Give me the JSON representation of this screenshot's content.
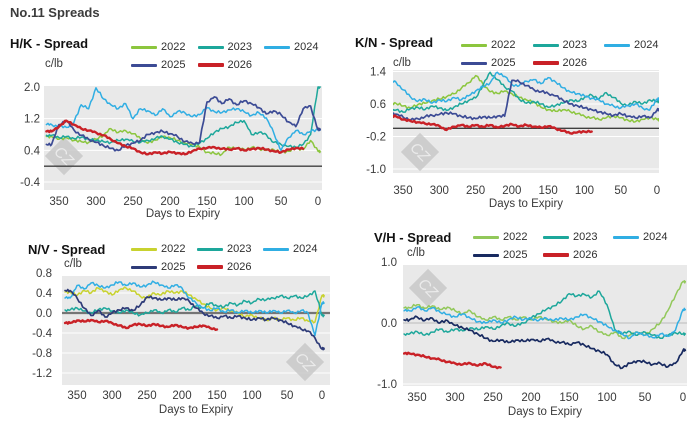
{
  "page_title": "No.11 Spreads",
  "watermark_text": "CZ",
  "legend_years": [
    "2022",
    "2023",
    "2024",
    "2025",
    "2026"
  ],
  "chart_data": [
    {
      "type": "line",
      "title": "H/K - Spread",
      "ylabel": "c/lb",
      "xlabel": "Days to Expiry",
      "ylim": [
        -0.6,
        2.02
      ],
      "yticks": [
        "2.0",
        "1.2",
        "0.4",
        "-0.4"
      ],
      "xticks": [
        "350",
        "300",
        "250",
        "200",
        "150",
        "100",
        "50",
        "0"
      ],
      "zero_line": 0.0,
      "grid": true,
      "legend_position": "top",
      "x_start": 360,
      "x_step": -10,
      "series": [
        {
          "name": "2022",
          "color": "#8cc63e",
          "values": [
            0.75,
            0.68,
            0.72,
            0.65,
            0.62,
            0.6,
            0.68,
            0.78,
            0.95,
            0.85,
            0.9,
            0.82,
            0.7,
            0.58,
            0.66,
            0.75,
            0.72,
            0.65,
            0.58,
            0.55,
            0.48,
            0.35,
            0.32,
            0.3,
            0.48,
            0.45,
            0.43,
            0.47,
            0.44,
            0.4,
            0.42,
            0.35,
            0.38,
            0.45,
            0.42,
            0.65,
            0.38
          ]
        },
        {
          "name": "2023",
          "color": "#1da79b",
          "values": [
            0.78,
            0.72,
            0.75,
            0.7,
            0.73,
            0.68,
            0.65,
            0.62,
            0.6,
            0.65,
            0.68,
            0.63,
            0.6,
            0.65,
            0.7,
            0.75,
            0.68,
            0.6,
            0.55,
            0.5,
            0.58,
            0.7,
            0.85,
            0.95,
            1.0,
            1.1,
            1.15,
            0.8,
            0.85,
            0.8,
            0.6,
            0.55,
            0.5,
            0.48,
            0.55,
            0.8,
            2.0
          ]
        },
        {
          "name": "2024",
          "color": "#30aee3",
          "values": [
            1.05,
            1.0,
            0.98,
            1.1,
            1.55,
            1.45,
            1.98,
            1.7,
            1.55,
            1.45,
            1.58,
            1.2,
            1.45,
            1.4,
            1.28,
            1.45,
            1.25,
            1.38,
            1.35,
            1.25,
            1.3,
            1.48,
            1.38,
            1.35,
            1.42,
            1.45,
            1.38,
            1.28,
            1.35,
            1.22,
            0.85,
            0.4,
            0.72,
            0.9,
            0.8,
            0.88,
            0.92
          ]
        },
        {
          "name": "2025",
          "color": "#3c4b95",
          "values": [
            0.55,
            1.05,
            1.15,
            0.92,
            0.78,
            0.68,
            0.6,
            0.52,
            0.45,
            0.4,
            0.52,
            0.58,
            0.65,
            0.8,
            0.85,
            0.88,
            0.82,
            0.75,
            0.62,
            0.58,
            0.6,
            1.62,
            1.75,
            1.58,
            1.7,
            1.55,
            1.65,
            1.58,
            1.48,
            1.32,
            1.4,
            1.3,
            1.12,
            1.0,
            1.45,
            1.52,
            0.92
          ]
        },
        {
          "name": "2026",
          "color": "#c92127",
          "values": [
            0.88,
            1.0,
            1.15,
            1.05,
            0.95,
            0.9,
            0.85,
            0.78,
            0.68,
            0.58,
            0.5,
            0.45,
            0.35,
            0.3,
            0.35,
            0.32,
            0.36,
            0.33,
            0.3,
            0.38,
            0.44,
            0.46,
            0.48,
            0.44,
            0.42,
            0.45,
            0.4,
            0.43,
            0.46,
            0.42,
            0.38,
            0.35,
            0.42,
            0.46,
            0.44
          ]
        }
      ]
    },
    {
      "type": "line",
      "title": "K/N - Spread",
      "ylabel": "c/lb",
      "xlabel": "Days to Expiry",
      "ylim": [
        -1.11,
        1.42
      ],
      "yticks": [
        "1.4",
        "0.6",
        "-0.2",
        "-1.0"
      ],
      "xticks": [
        "350",
        "300",
        "250",
        "200",
        "150",
        "100",
        "50",
        "0"
      ],
      "zero_line": 0.0,
      "grid": true,
      "legend_position": "top",
      "x_start": 360,
      "x_step": -10,
      "series": [
        {
          "name": "2022",
          "color": "#8cc63e",
          "values": [
            0.62,
            0.55,
            0.5,
            0.58,
            0.62,
            0.68,
            0.72,
            0.78,
            0.85,
            0.98,
            1.12,
            1.3,
            1.1,
            0.9,
            0.86,
            0.92,
            0.85,
            0.76,
            0.7,
            0.64,
            0.52,
            0.46,
            0.42,
            0.46,
            0.42,
            0.36,
            0.3,
            0.26,
            0.22,
            0.26,
            0.3,
            0.26,
            0.2,
            0.16,
            0.22,
            0.26,
            0.22
          ]
        },
        {
          "name": "2023",
          "color": "#1da79b",
          "values": [
            0.45,
            0.4,
            0.48,
            0.52,
            0.46,
            0.55,
            0.5,
            0.44,
            0.52,
            0.6,
            0.68,
            0.75,
            1.05,
            1.38,
            1.2,
            1.02,
            0.92,
            0.72,
            0.62,
            0.66,
            0.6,
            0.52,
            0.56,
            0.62,
            0.7,
            0.66,
            0.76,
            0.82,
            0.72,
            0.88,
            0.76,
            0.62,
            0.56,
            0.66,
            0.6,
            0.7,
            0.66
          ]
        },
        {
          "name": "2024",
          "color": "#30aee3",
          "values": [
            1.15,
            0.95,
            0.78,
            0.66,
            0.72,
            0.62,
            0.7,
            0.66,
            0.76,
            0.7,
            0.8,
            0.92,
            1.02,
            1.12,
            1.38,
            1.28,
            1.08,
            1.05,
            1.16,
            1.2,
            1.1,
            1.25,
            1.15,
            1.0,
            0.9,
            0.85,
            0.8,
            0.74,
            0.7,
            0.6,
            0.55,
            0.5,
            0.56,
            0.6,
            0.5,
            0.45,
            0.72
          ]
        },
        {
          "name": "2025",
          "color": "#3c4b95",
          "values": [
            0.35,
            0.28,
            0.2,
            0.24,
            0.28,
            0.32,
            0.34,
            0.38,
            0.36,
            0.3,
            0.26,
            0.24,
            0.28,
            0.26,
            0.3,
            0.3,
            1.18,
            1.15,
            1.05,
            0.96,
            0.9,
            0.86,
            0.8,
            0.7,
            0.6,
            0.56,
            0.5,
            0.46,
            0.4,
            0.36,
            0.32,
            0.36,
            0.3,
            0.26,
            0.3,
            0.26,
            0.45
          ]
        },
        {
          "name": "2026",
          "color": "#c92127",
          "values": [
            0.3,
            0.22,
            0.18,
            0.15,
            0.12,
            0.1,
            0.06,
            -0.04,
            0.04,
            0.08,
            0.04,
            0.08,
            0.04,
            0.08,
            0.02,
            0.06,
            0.1,
            0.05,
            0.08,
            0.04,
            0.02,
            0.05,
            0.0,
            -0.06,
            -0.12,
            -0.1,
            -0.08,
            -0.08
          ]
        }
      ]
    },
    {
      "type": "line",
      "title": "N/V - Spread",
      "ylabel": "c/lb",
      "xlabel": "Days to Expiry",
      "ylim": [
        -1.39,
        0.77
      ],
      "yticks": [
        "0.8",
        "0.4",
        "0.0",
        "-0.4",
        "-0.8",
        "-1.2"
      ],
      "xticks": [
        "350",
        "300",
        "250",
        "200",
        "150",
        "100",
        "50",
        "0"
      ],
      "zero_line": 0.0,
      "grid": true,
      "legend_position": "top",
      "x_start": 360,
      "x_step": -10,
      "series": [
        {
          "name": "2022",
          "color": "#c8d22f",
          "values": [
            0.42,
            0.35,
            0.45,
            0.4,
            0.5,
            0.44,
            0.36,
            0.46,
            0.5,
            0.44,
            0.34,
            0.3,
            0.4,
            0.36,
            0.44,
            0.4,
            0.44,
            0.36,
            0.28,
            0.18,
            0.1,
            0.06,
            0.1,
            0.04,
            0.0,
            -0.08,
            -0.04,
            -0.1,
            -0.14,
            -0.1,
            -0.14,
            -0.1,
            -0.14,
            -0.1,
            -0.16,
            -0.18,
            0.35
          ]
        },
        {
          "name": "2023",
          "color": "#1da79b",
          "values": [
            0.06,
            0.1,
            0.04,
            0.0,
            0.06,
            0.1,
            0.04,
            0.0,
            0.06,
            0.0,
            -0.04,
            0.0,
            0.06,
            0.0,
            0.06,
            0.02,
            0.1,
            0.06,
            0.14,
            0.1,
            0.2,
            0.14,
            0.12,
            0.2,
            0.16,
            0.24,
            0.2,
            0.28,
            0.26,
            0.3,
            0.34,
            0.3,
            0.34,
            0.3,
            0.34,
            0.44,
            -0.05
          ]
        },
        {
          "name": "2024",
          "color": "#30aee3",
          "values": [
            0.3,
            0.55,
            0.48,
            0.6,
            0.55,
            0.5,
            0.56,
            0.62,
            0.55,
            0.6,
            0.52,
            0.56,
            0.62,
            0.56,
            0.5,
            0.56,
            0.5,
            0.3,
            0.2,
            0.1,
            0.05,
            0.1,
            0.02,
            0.06,
            0.0,
            0.05,
            0.0,
            0.05,
            0.0,
            0.05,
            0.0,
            0.05,
            0.0,
            0.05,
            0.0,
            -0.45,
            0.2
          ]
        },
        {
          "name": "2025",
          "color": "#2e3b78",
          "values": [
            0.45,
            0.3,
            0.1,
            -0.05,
            0.05,
            -0.08,
            0.0,
            0.06,
            0.1,
            0.05,
            0.15,
            0.32,
            0.3,
            0.26,
            0.3,
            0.26,
            0.3,
            0.24,
            0.1,
            0.0,
            -0.06,
            -0.1,
            -0.06,
            -0.1,
            -0.06,
            -0.1,
            -0.14,
            -0.1,
            -0.14,
            -0.1,
            -0.14,
            -0.2,
            -0.26,
            -0.32,
            -0.36,
            -0.5,
            -0.72
          ]
        },
        {
          "name": "2026",
          "color": "#c92127",
          "values": [
            -0.2,
            -0.15,
            -0.17,
            -0.14,
            -0.18,
            -0.16,
            -0.2,
            -0.25,
            -0.3,
            -0.24,
            -0.22,
            -0.26,
            -0.22,
            -0.26,
            -0.28,
            -0.24,
            -0.28,
            -0.3,
            -0.28,
            -0.25,
            -0.3,
            -0.33
          ]
        }
      ]
    },
    {
      "type": "line",
      "title": "V/H - Spread",
      "ylabel": "c/lb",
      "xlabel": "Days to Expiry",
      "ylim": [
        -1.03,
        0.95
      ],
      "yticks": [
        "1.0",
        "0.0",
        "-1.0"
      ],
      "xticks": [
        "350",
        "300",
        "250",
        "200",
        "150",
        "100",
        "50",
        "0"
      ],
      "zero_line": 0.0,
      "grid": true,
      "legend_position": "top",
      "x_start": 360,
      "x_step": -10,
      "series": [
        {
          "name": "2022",
          "color": "#92c85a",
          "values": [
            0.25,
            0.3,
            0.24,
            0.28,
            0.22,
            0.26,
            0.2,
            0.15,
            0.2,
            0.1,
            0.05,
            0.1,
            0.05,
            0.1,
            0.05,
            0.1,
            0.05,
            0.1,
            0.06,
            0.02,
            0.0,
            0.05,
            -0.05,
            -0.1,
            -0.05,
            -0.15,
            -0.2,
            -0.15,
            -0.25,
            -0.2,
            -0.15,
            -0.2,
            -0.1,
            0.0,
            0.2,
            0.45,
            0.68
          ]
        },
        {
          "name": "2023",
          "color": "#1da79b",
          "values": [
            -0.18,
            -0.14,
            -0.2,
            -0.15,
            -0.1,
            -0.15,
            -0.1,
            -0.13,
            -0.08,
            -0.11,
            -0.06,
            -0.1,
            -0.05,
            0.0,
            -0.05,
            0.0,
            0.08,
            0.15,
            0.22,
            0.28,
            0.35,
            0.48,
            0.44,
            0.47,
            0.42,
            0.52,
            0.3,
            -0.1,
            -0.18,
            -0.14,
            -0.2,
            -0.15,
            -0.2,
            -0.25,
            -0.2,
            -0.16,
            -0.18
          ]
        },
        {
          "name": "2024",
          "color": "#30aee3",
          "values": [
            0.2,
            0.26,
            0.2,
            0.25,
            0.18,
            0.14,
            0.1,
            0.15,
            0.08,
            0.02,
            0.0,
            0.05,
            0.0,
            0.05,
            0.1,
            0.05,
            0.08,
            0.04,
            0.08,
            0.04,
            0.08,
            0.05,
            0.1,
            0.14,
            0.08,
            0.02,
            -0.05,
            -0.12,
            -0.18,
            -0.25,
            -0.15,
            -0.2,
            -0.24,
            -0.18,
            -0.22,
            -0.12,
            0.22
          ]
        },
        {
          "name": "2025",
          "color": "#182a60",
          "values": [
            0.05,
            0.1,
            0.04,
            0.08,
            0.0,
            0.04,
            -0.04,
            -0.08,
            -0.12,
            -0.18,
            -0.25,
            -0.3,
            -0.28,
            -0.32,
            -0.28,
            -0.3,
            -0.27,
            -0.3,
            -0.26,
            -0.3,
            -0.32,
            -0.35,
            -0.32,
            -0.36,
            -0.42,
            -0.46,
            -0.52,
            -0.68,
            -0.74,
            -0.66,
            -0.62,
            -0.64,
            -0.68,
            -0.66,
            -0.72,
            -0.66,
            -0.45
          ]
        },
        {
          "name": "2026",
          "color": "#c92127",
          "values": [
            -0.5,
            -0.52,
            -0.55,
            -0.58,
            -0.6,
            -0.64,
            -0.66,
            -0.68,
            -0.66,
            -0.7,
            -0.66,
            -0.72,
            -0.73
          ]
        }
      ]
    }
  ]
}
